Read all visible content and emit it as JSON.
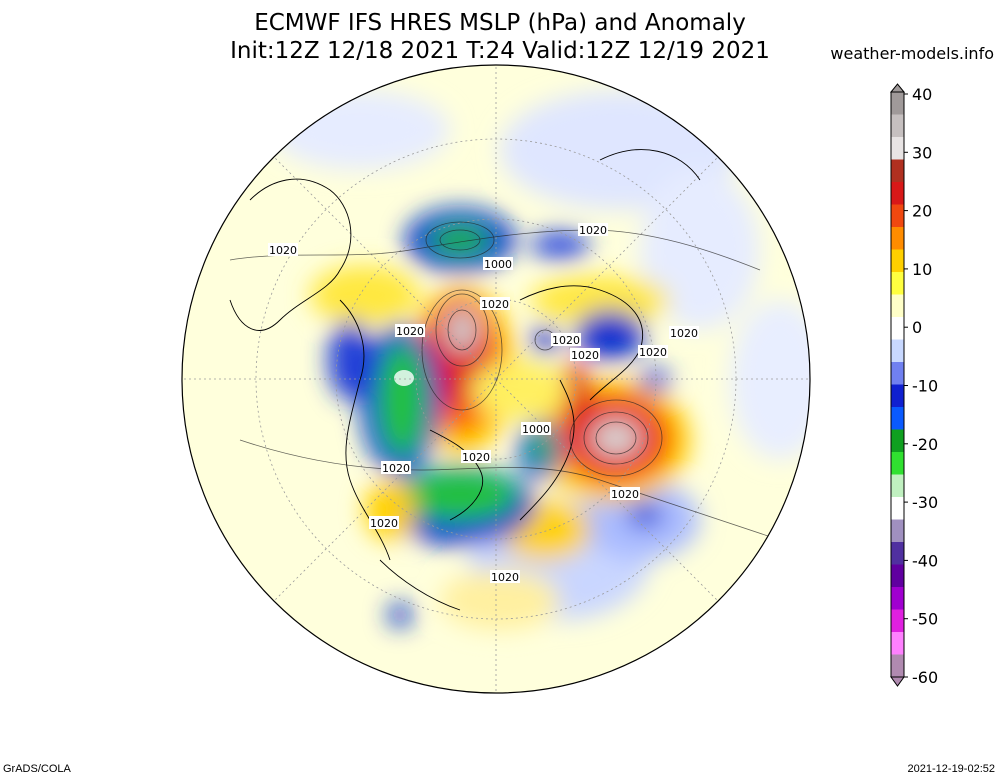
{
  "header": {
    "title_line1": "ECMWF IFS HRES MSLP (hPa) and Anomaly",
    "title_line2": "Init:12Z 12/18 2021 T:24 Valid:12Z 12/19 2021",
    "source": "weather-models.info"
  },
  "footer": {
    "software": "GrADS/COLA",
    "generated": "2021-12-19-02:52"
  },
  "colorbar": {
    "ticks": [
      "40",
      "30",
      "20",
      "10",
      "0",
      "-10",
      "-20",
      "-30",
      "-40",
      "-50",
      "-60"
    ],
    "colors": [
      "#a09a9a",
      "#c6c0c0",
      "#e8e4e4",
      "#b03020",
      "#d81818",
      "#f04810",
      "#ff8c00",
      "#ffd000",
      "#ffff40",
      "#ffffc8",
      "#ffffff",
      "#c8d8ff",
      "#7080f0",
      "#1020d0",
      "#0a5aff",
      "#10a020",
      "#30e030",
      "#c0f0c0",
      "#ffffff",
      "#a090c0",
      "#5030a0",
      "#6000a0",
      "#a000d0",
      "#e020e0",
      "#ff80ff",
      "#b08ab0"
    ]
  },
  "map": {
    "isobar_labels": [
      "1020",
      "1000",
      "1020",
      "1020",
      "1020",
      "1020",
      "1020",
      "1020",
      "1020",
      "1020",
      "1000",
      "1020",
      "1020",
      "1020",
      "1020",
      "1020"
    ]
  }
}
